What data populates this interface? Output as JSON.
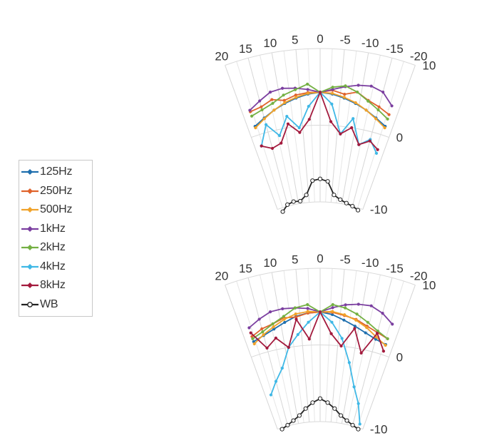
{
  "chart_data": [
    {
      "type": "line",
      "polar": true,
      "angle_tick_labels": [
        "20",
        "15",
        "10",
        "5",
        "0",
        "-5",
        "-10",
        "-15",
        "-20"
      ],
      "radial_tick_labels": [
        "10",
        "0",
        "-10"
      ],
      "rlim": [
        -10,
        10
      ],
      "legend_position": "left",
      "series": [
        {
          "name": "125Hz",
          "color": "#1f6fae",
          "angles": [
            18,
            15,
            12,
            9,
            6,
            3,
            0,
            -3,
            -6,
            -9,
            -12,
            -15,
            -18
          ],
          "values": [
            1.2,
            1.9,
            2.6,
            3.2,
            3.7,
            4.1,
            4.3,
            4.1,
            3.7,
            3.2,
            2.6,
            1.9,
            1.2
          ]
        },
        {
          "name": "250Hz",
          "color": "#e0632c",
          "angles": [
            18,
            15,
            12,
            9,
            6,
            3,
            0,
            -3,
            -6,
            -9,
            -12,
            -15,
            -18
          ],
          "values": [
            3.2,
            3.4,
            4.0,
            3.6,
            4.1,
            4.3,
            4.3,
            4.6,
            4.2,
            4.7,
            3.9,
            3.4,
            2.8
          ]
        },
        {
          "name": "500Hz",
          "color": "#f0a22a",
          "angles": [
            18,
            15,
            12,
            9,
            6,
            3,
            0,
            -3,
            -6,
            -9,
            -12,
            -15,
            -18
          ],
          "values": [
            1.0,
            1.8,
            2.6,
            3.3,
            3.8,
            4.2,
            4.3,
            4.2,
            3.8,
            3.3,
            2.6,
            1.8,
            1.0
          ]
        },
        {
          "name": "1kHz",
          "color": "#7b3fa0",
          "angles": [
            18,
            15,
            12,
            9,
            6,
            3,
            0,
            -3,
            -6,
            -9,
            -12,
            -15,
            -18
          ],
          "values": [
            3.4,
            4.2,
            5.0,
            5.2,
            5.0,
            4.7,
            4.3,
            4.7,
            5.2,
            5.6,
            5.8,
            5.4,
            4.0
          ]
        },
        {
          "name": "2kHz",
          "color": "#74b043",
          "angles": [
            18,
            15,
            12,
            9,
            6,
            3,
            0,
            -3,
            -6,
            -9,
            -12,
            -15,
            -18
          ],
          "values": [
            2.6,
            3.0,
            3.5,
            4.3,
            4.8,
            5.4,
            4.3,
            5.0,
            5.3,
            4.7,
            3.8,
            3.0,
            2.2
          ]
        },
        {
          "name": "4kHz",
          "color": "#3fb8e6",
          "angles": [
            18,
            15,
            12,
            9,
            6,
            3,
            0,
            -3,
            -6,
            -9,
            -12,
            -15,
            -18
          ],
          "values": [
            -1.5,
            1.0,
            -0.8,
            1.5,
            -0.2,
            2.5,
            4.3,
            2.8,
            -1.0,
            1.2,
            -2.0,
            -1.0,
            -2.5
          ]
        },
        {
          "name": "8kHz",
          "color": "#a31a3d",
          "angles": [
            18,
            15,
            12,
            9,
            6,
            3,
            0,
            -3,
            -6,
            -9,
            -12,
            -15,
            -18
          ],
          "values": [
            -1.5,
            -2.2,
            -1.8,
            0.5,
            -0.8,
            0.8,
            4.3,
            0.5,
            -1.0,
            0.0,
            -2.0,
            -1.2,
            -2.0
          ]
        },
        {
          "name": "WB",
          "color": "#222222",
          "angles": [
            18,
            15,
            12,
            9,
            6,
            3,
            0,
            -3,
            -6,
            -9,
            -12,
            -15,
            -18
          ],
          "values": [
            -10.5,
            -9.8,
            -9.6,
            -9.7,
            -9.0,
            -7.2,
            -7.0,
            -7.3,
            -9.0,
            -9.5,
            -9.8,
            -10.0,
            -10.3
          ]
        }
      ]
    },
    {
      "type": "line",
      "polar": true,
      "angle_tick_labels": [
        "20",
        "15",
        "10",
        "5",
        "0",
        "-5",
        "-10",
        "-15",
        "-20"
      ],
      "radial_tick_labels": [
        "10",
        "0",
        "-10"
      ],
      "rlim": [
        -10,
        10
      ],
      "legend_position": "left",
      "series": [
        {
          "name": "125Hz",
          "color": "#1f6fae",
          "angles": [
            18,
            15,
            12,
            9,
            6,
            3,
            0,
            -3,
            -6,
            -9,
            -12,
            -15,
            -18
          ],
          "values": [
            1.8,
            2.2,
            2.7,
            3.3,
            3.9,
            4.2,
            4.3,
            4.0,
            3.4,
            2.8,
            2.2,
            1.7,
            1.4
          ]
        },
        {
          "name": "250Hz",
          "color": "#e0632c",
          "angles": [
            18,
            15,
            12,
            9,
            6,
            3,
            0,
            -3,
            -6,
            -9,
            -12,
            -15,
            -18
          ],
          "values": [
            2.5,
            3.1,
            3.4,
            3.9,
            3.8,
            4.2,
            4.3,
            4.3,
            4.0,
            3.7,
            3.1,
            2.6,
            2.2
          ]
        },
        {
          "name": "500Hz",
          "color": "#f0a22a",
          "angles": [
            18,
            15,
            12,
            9,
            6,
            3,
            0,
            -3,
            -6,
            -9,
            -12,
            -15,
            -18
          ],
          "values": [
            1.5,
            2.3,
            3.0,
            3.7,
            4.2,
            4.4,
            4.3,
            4.4,
            4.1,
            3.6,
            2.9,
            2.0,
            1.3
          ]
        },
        {
          "name": "1kHz",
          "color": "#7b3fa0",
          "angles": [
            18,
            15,
            12,
            9,
            6,
            3,
            0,
            -3,
            -6,
            -9,
            -12,
            -15,
            -18
          ],
          "values": [
            3.7,
            4.4,
            5.0,
            5.1,
            5.0,
            4.8,
            4.3,
            4.9,
            5.4,
            5.7,
            5.8,
            5.2,
            4.2
          ]
        },
        {
          "name": "2kHz",
          "color": "#74b043",
          "angles": [
            18,
            15,
            12,
            9,
            6,
            3,
            0,
            -3,
            -6,
            -9,
            -12,
            -15,
            -18
          ],
          "values": [
            2.2,
            2.7,
            3.4,
            4.1,
            5.0,
            5.3,
            4.3,
            5.3,
            5.0,
            4.4,
            3.6,
            2.8,
            2.2
          ]
        },
        {
          "name": "4kHz",
          "color": "#3fb8e6",
          "angles": [
            18,
            15,
            12,
            9,
            6,
            3,
            0,
            -3,
            -6,
            -9,
            -12,
            -15,
            -18
          ],
          "values": [
            -5.5,
            -4.0,
            -2.5,
            0.0,
            1.5,
            3.0,
            4.3,
            3.0,
            1.0,
            -2.0,
            -5.0,
            -7.0,
            -9.5
          ]
        },
        {
          "name": "8kHz",
          "color": "#a31a3d",
          "angles": [
            18,
            15,
            12,
            9,
            6,
            3,
            0,
            -3,
            -6,
            -9,
            -12,
            -15,
            -18
          ],
          "values": [
            3.0,
            0.5,
            1.5,
            0.0,
            3.5,
            0.8,
            4.3,
            1.5,
            0.0,
            2.5,
            -0.5,
            2.5,
            0.5
          ]
        },
        {
          "name": "WB",
          "color": "#222222",
          "angles": [
            18,
            15,
            12,
            9,
            6,
            3,
            0,
            -3,
            -6,
            -9,
            -12,
            -15,
            -18
          ],
          "values": [
            -10.2,
            -9.9,
            -9.5,
            -9.0,
            -8.2,
            -7.5,
            -7.0,
            -7.5,
            -8.2,
            -9.0,
            -9.5,
            -9.9,
            -10.2
          ]
        }
      ]
    }
  ]
}
